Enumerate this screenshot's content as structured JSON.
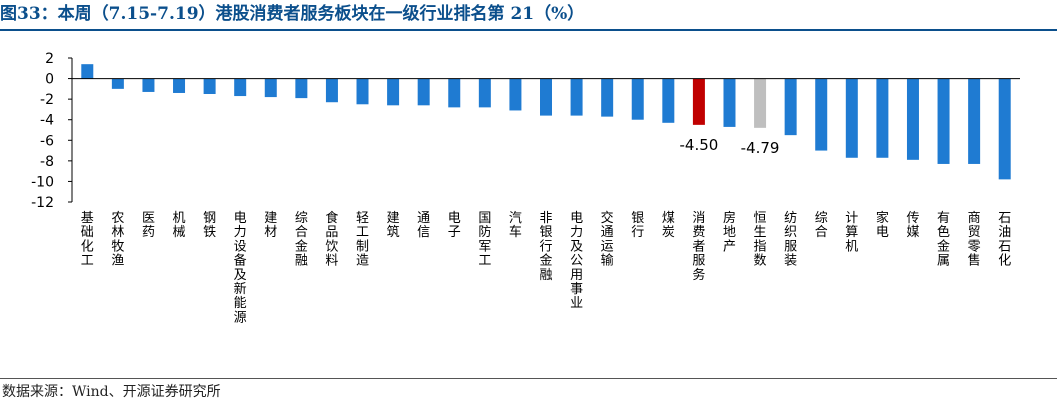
{
  "title": "图33：本周（7.15-7.19）港股消费者服务板块在一级行业排名第 21（%）",
  "source": "数据来源：Wind、开源证券研究所",
  "chart_data": {
    "type": "bar",
    "title": "图33：本周（7.15-7.19）港股消费者服务板块在一级行业排名第 21（%）",
    "xlabel": "",
    "ylabel": "",
    "ylim": [
      -12,
      2
    ],
    "yticks": [
      2,
      0,
      -2,
      -4,
      -6,
      -8,
      -10,
      -12
    ],
    "grid": false,
    "categories": [
      "基础化工",
      "农林牧渔",
      "医药",
      "机械",
      "钢铁",
      "电力设备及新能源",
      "建材",
      "综合金融",
      "食品饮料",
      "轻工制造",
      "建筑",
      "通信",
      "电子",
      "国防军工",
      "汽车",
      "非银行金融",
      "电力及公用事业",
      "交通运输",
      "银行",
      "煤炭",
      "消费者服务",
      "房地产",
      "恒生指数",
      "纺织服装",
      "综合",
      "计算机",
      "家电",
      "传媒",
      "有色金属",
      "商贸零售",
      "石油石化"
    ],
    "values": [
      1.4,
      -1.0,
      -1.3,
      -1.4,
      -1.5,
      -1.7,
      -1.8,
      -1.9,
      -2.3,
      -2.5,
      -2.6,
      -2.6,
      -2.8,
      -2.8,
      -3.1,
      -3.6,
      -3.6,
      -3.7,
      -4.0,
      -4.3,
      -4.5,
      -4.7,
      -4.79,
      -5.5,
      -7.0,
      -7.7,
      -7.7,
      -7.9,
      -8.3,
      -8.3,
      -9.8
    ],
    "colors": {
      "default": "#1f7bd2",
      "consumer_services": "#c00000",
      "hsi": "#bfbfbf"
    },
    "highlight": {
      "消费者服务": "#c00000",
      "恒生指数": "#bfbfbf"
    },
    "annotations": [
      {
        "category": "消费者服务",
        "text": "-4.50"
      },
      {
        "category": "恒生指数",
        "text": "-4.79"
      }
    ]
  }
}
